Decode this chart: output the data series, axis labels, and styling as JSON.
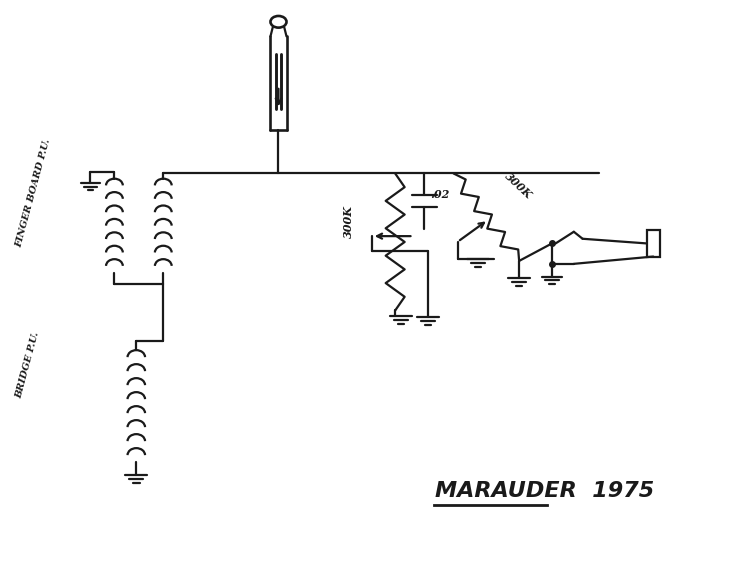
{
  "bg_color": "#ffffff",
  "line_color": "#1a1a1a",
  "lw": 1.6,
  "lw_thick": 2.5,
  "title": "MARAUDER  1975",
  "title_fontsize": 16,
  "fb_label": "FINGER BOARD P.U.",
  "br_label": "BRIDGE P.U.",
  "cap_label": ".02",
  "r1_label": "300K",
  "r2_label": "300K",
  "coil_r": 0.11,
  "fb_n": 7,
  "br_n": 8
}
